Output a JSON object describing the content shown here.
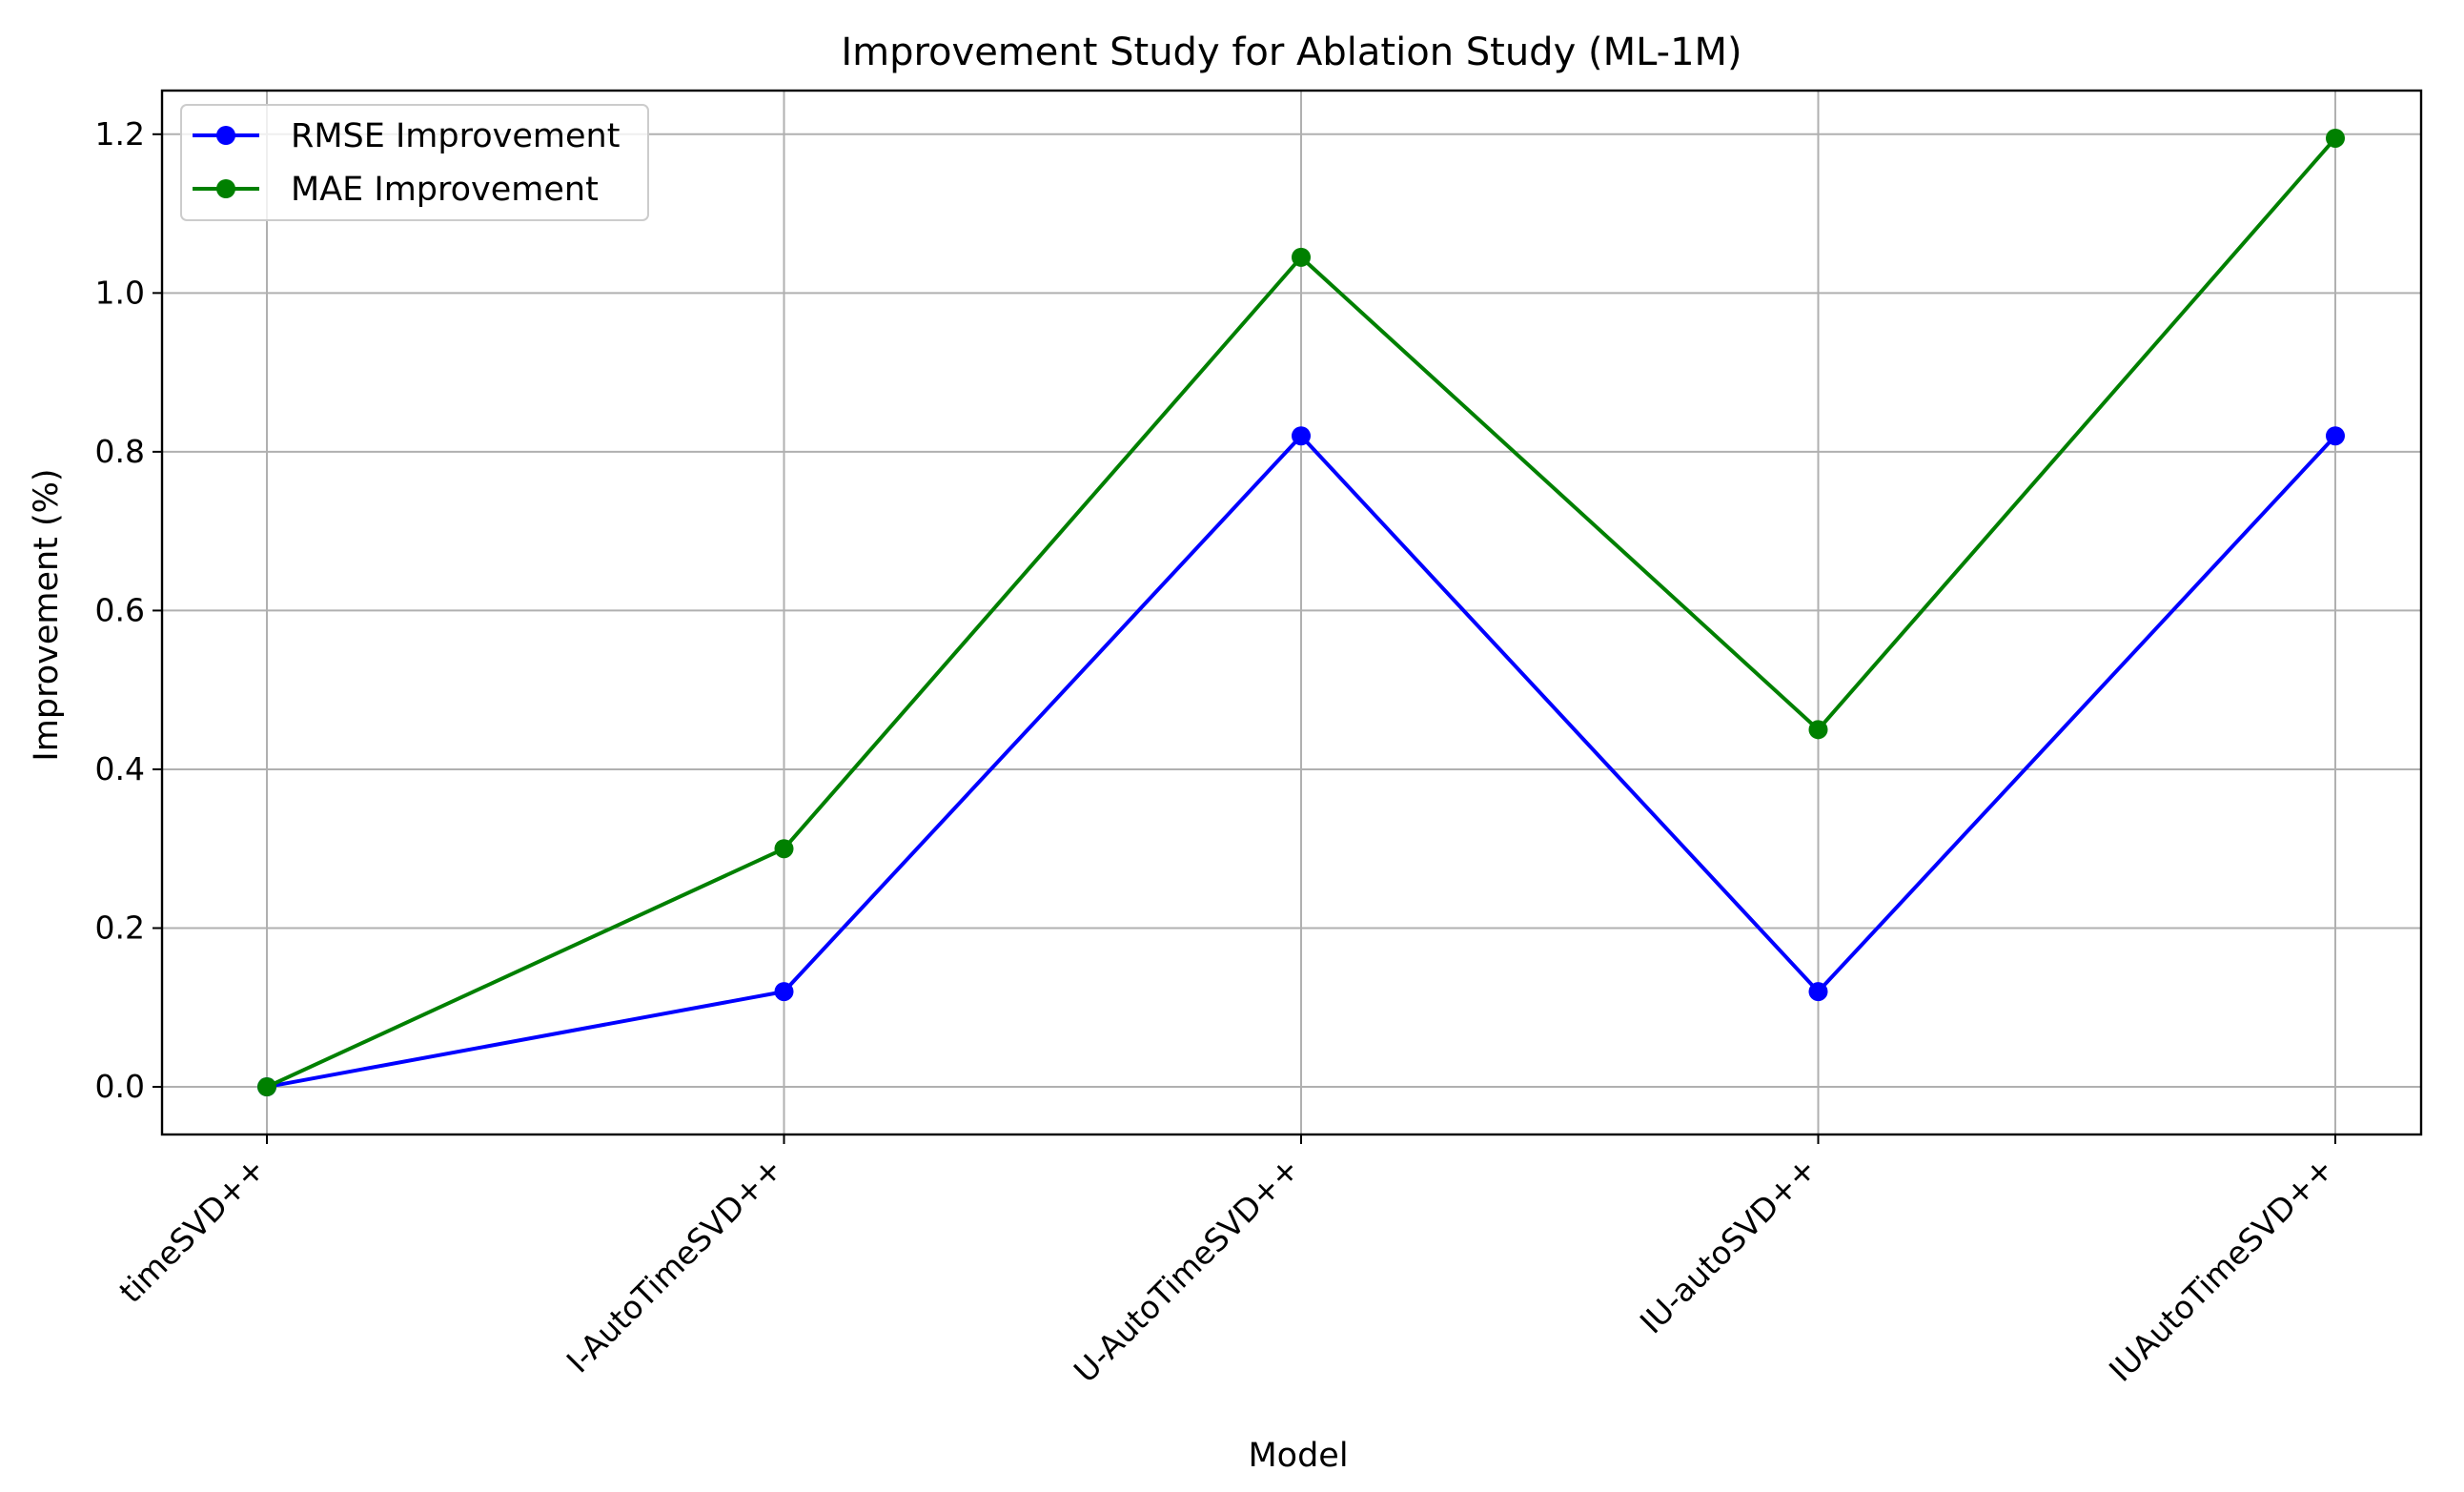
{
  "chart_data": {
    "type": "line",
    "title": "Improvement Study for Ablation Study (ML-1M)",
    "xlabel": "Model",
    "ylabel": "Improvement (%)",
    "categories": [
      "timeSVD++",
      "I-AutoTimeSVD++",
      "U-AutoTimeSVD++",
      "IU-autoSVD++",
      "IUAutoTimeSVD++"
    ],
    "series": [
      {
        "name": "RMSE Improvement",
        "color": "#0000ff",
        "values": [
          0.0,
          0.12,
          0.82,
          0.12,
          0.82
        ]
      },
      {
        "name": "MAE Improvement",
        "color": "#008000",
        "values": [
          0.0,
          0.3,
          1.045,
          0.45,
          1.195
        ]
      }
    ],
    "ylim": [
      -0.06,
      1.255
    ],
    "yticks": [
      0.0,
      0.2,
      0.4,
      0.6,
      0.8,
      1.0,
      1.2
    ],
    "ytick_labels": [
      "0.0",
      "0.2",
      "0.4",
      "0.6",
      "0.8",
      "1.0",
      "1.2"
    ],
    "grid": true,
    "legend_position": "top-left"
  }
}
